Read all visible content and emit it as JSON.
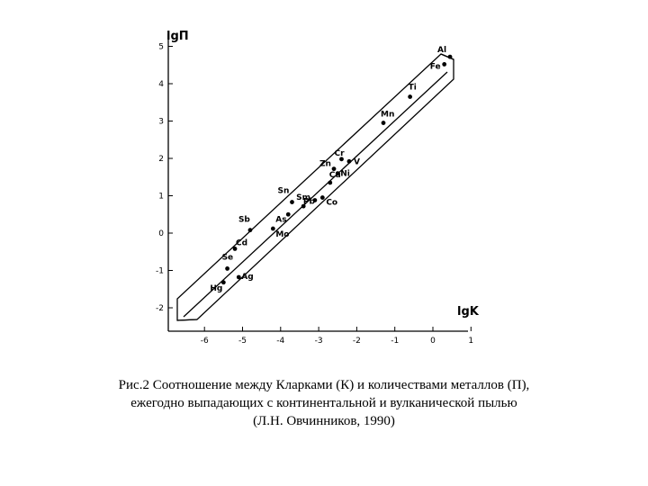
{
  "chart_data": {
    "type": "scatter",
    "xlabel": "lgK",
    "ylabel": "lgП",
    "xlim": [
      -6.6,
      1.0
    ],
    "ylim": [
      -2.3,
      5.2
    ],
    "x_ticks": [
      -6,
      -5,
      -4,
      -3,
      -2,
      -1,
      0,
      1
    ],
    "y_ticks": [
      5,
      4,
      3,
      2,
      1,
      0,
      -1,
      -2
    ],
    "points": [
      {
        "label": "Al",
        "x": 0.45,
        "y": 4.72
      },
      {
        "label": "Fe",
        "x": 0.3,
        "y": 4.52
      },
      {
        "label": "Ti",
        "x": -0.6,
        "y": 3.65
      },
      {
        "label": "Mn",
        "x": -1.3,
        "y": 2.95
      },
      {
        "label": "Cr",
        "x": -2.4,
        "y": 1.98
      },
      {
        "label": "V",
        "x": -2.2,
        "y": 1.92
      },
      {
        "label": "Zn",
        "x": -2.6,
        "y": 1.72
      },
      {
        "label": "Ni",
        "x": -2.5,
        "y": 1.6
      },
      {
        "label": "Cu",
        "x": -2.7,
        "y": 1.35
      },
      {
        "label": "Sn",
        "x": -3.7,
        "y": 0.83
      },
      {
        "label": "Sm",
        "x": -3.4,
        "y": 0.72
      },
      {
        "label": "Pb",
        "x": -3.1,
        "y": 0.88
      },
      {
        "label": "Co",
        "x": -2.9,
        "y": 0.95
      },
      {
        "label": "As",
        "x": -3.8,
        "y": 0.5
      },
      {
        "label": "Mo",
        "x": -4.2,
        "y": 0.12
      },
      {
        "label": "Sb",
        "x": -4.8,
        "y": 0.08
      },
      {
        "label": "Cd",
        "x": -5.2,
        "y": -0.42
      },
      {
        "label": "Se",
        "x": -5.4,
        "y": -0.95
      },
      {
        "label": "Ag",
        "x": -5.1,
        "y": -1.18
      },
      {
        "label": "Hg",
        "x": -5.5,
        "y": -1.32
      }
    ]
  },
  "caption": {
    "line1": "Рис.2 Соотношение между Кларками (К) и количествами металлов (П),",
    "line2": "ежегодно выпадающих с континентальной и вулканической пылью",
    "line3": "(Л.Н. Овчинников, 1990)"
  }
}
